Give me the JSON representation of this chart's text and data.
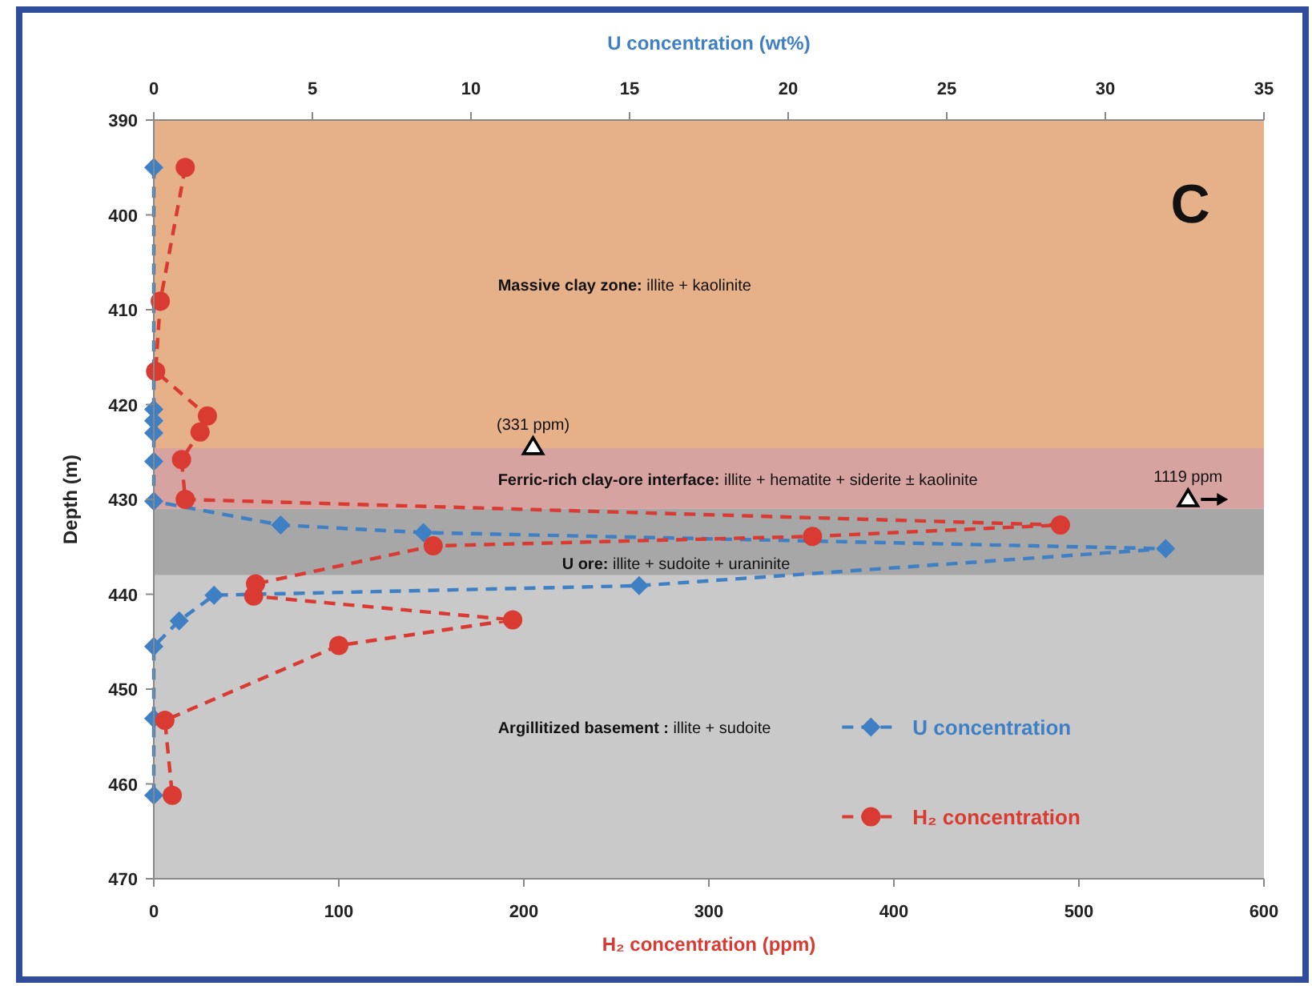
{
  "chart_data": {
    "type": "line",
    "xlabel": "H₂ concentration (ppm)",
    "x2label": "U concentration (wt%)",
    "ylabel": "Depth (m)",
    "xlim": [
      0,
      600
    ],
    "xticks": [
      0,
      100,
      200,
      300,
      400,
      500,
      600
    ],
    "x2lim": [
      0,
      35
    ],
    "x2ticks": [
      0,
      5,
      10,
      15,
      20,
      25,
      30,
      35
    ],
    "ylim": [
      470,
      390
    ],
    "yticks": [
      390,
      400,
      410,
      420,
      430,
      440,
      450,
      460,
      470
    ],
    "legend": "bottom right",
    "line_style": "dashed",
    "series": [
      {
        "name": "U concentration",
        "color": "#3f7fc4",
        "axis": "x2",
        "marker": "diamond",
        "x": [
          0,
          0,
          0,
          0,
          0,
          0,
          4.0,
          8.5,
          31.9,
          15.3,
          1.9,
          0.8,
          0,
          0,
          0
        ],
        "values": [
          395,
          420.5,
          421.7,
          423,
          426,
          430.2,
          432.7,
          433.5,
          435.2,
          439.1,
          440.1,
          442.8,
          445.5,
          453.1,
          461.2
        ]
      },
      {
        "name": "H₂ concentration",
        "color": "#d93a32",
        "marker": "circle",
        "x": [
          17,
          3.5,
          1,
          29,
          25,
          15,
          17,
          490,
          356,
          151,
          55,
          54,
          194,
          100,
          6,
          10
        ],
        "values": [
          395,
          409.1,
          416.5,
          421.2,
          422.9,
          425.8,
          430,
          432.7,
          433.9,
          434.9,
          438.9,
          440.2,
          442.7,
          445.4,
          453.3,
          461.2
        ]
      }
    ],
    "bands": [
      {
        "axis": "y",
        "from": 390,
        "to": 424.6,
        "label": "Massive clay zone: illite + kaolinite",
        "color": "#e6b088"
      },
      {
        "axis": "y",
        "from": 424.6,
        "to": 431,
        "label": "Ferric-rich clay-ore interface: illite + hematite + siderite ± kaolinite",
        "color": "#d7a3a0"
      },
      {
        "axis": "y",
        "from": 431,
        "to": 438,
        "label": "U ore: illite + sudoite + uraninite",
        "color": "#a7a7a7"
      },
      {
        "axis": "y",
        "from": 438,
        "to": 470,
        "label": "Argillitized basement : illite + sudoite",
        "color": "#c9c9c9"
      }
    ],
    "annotations": [
      "C",
      {
        "text": "(331 ppm)",
        "x": 205,
        "y": 424.5
      },
      {
        "text": "1119 ppm",
        "x": 559,
        "y": 430
      }
    ]
  }
}
